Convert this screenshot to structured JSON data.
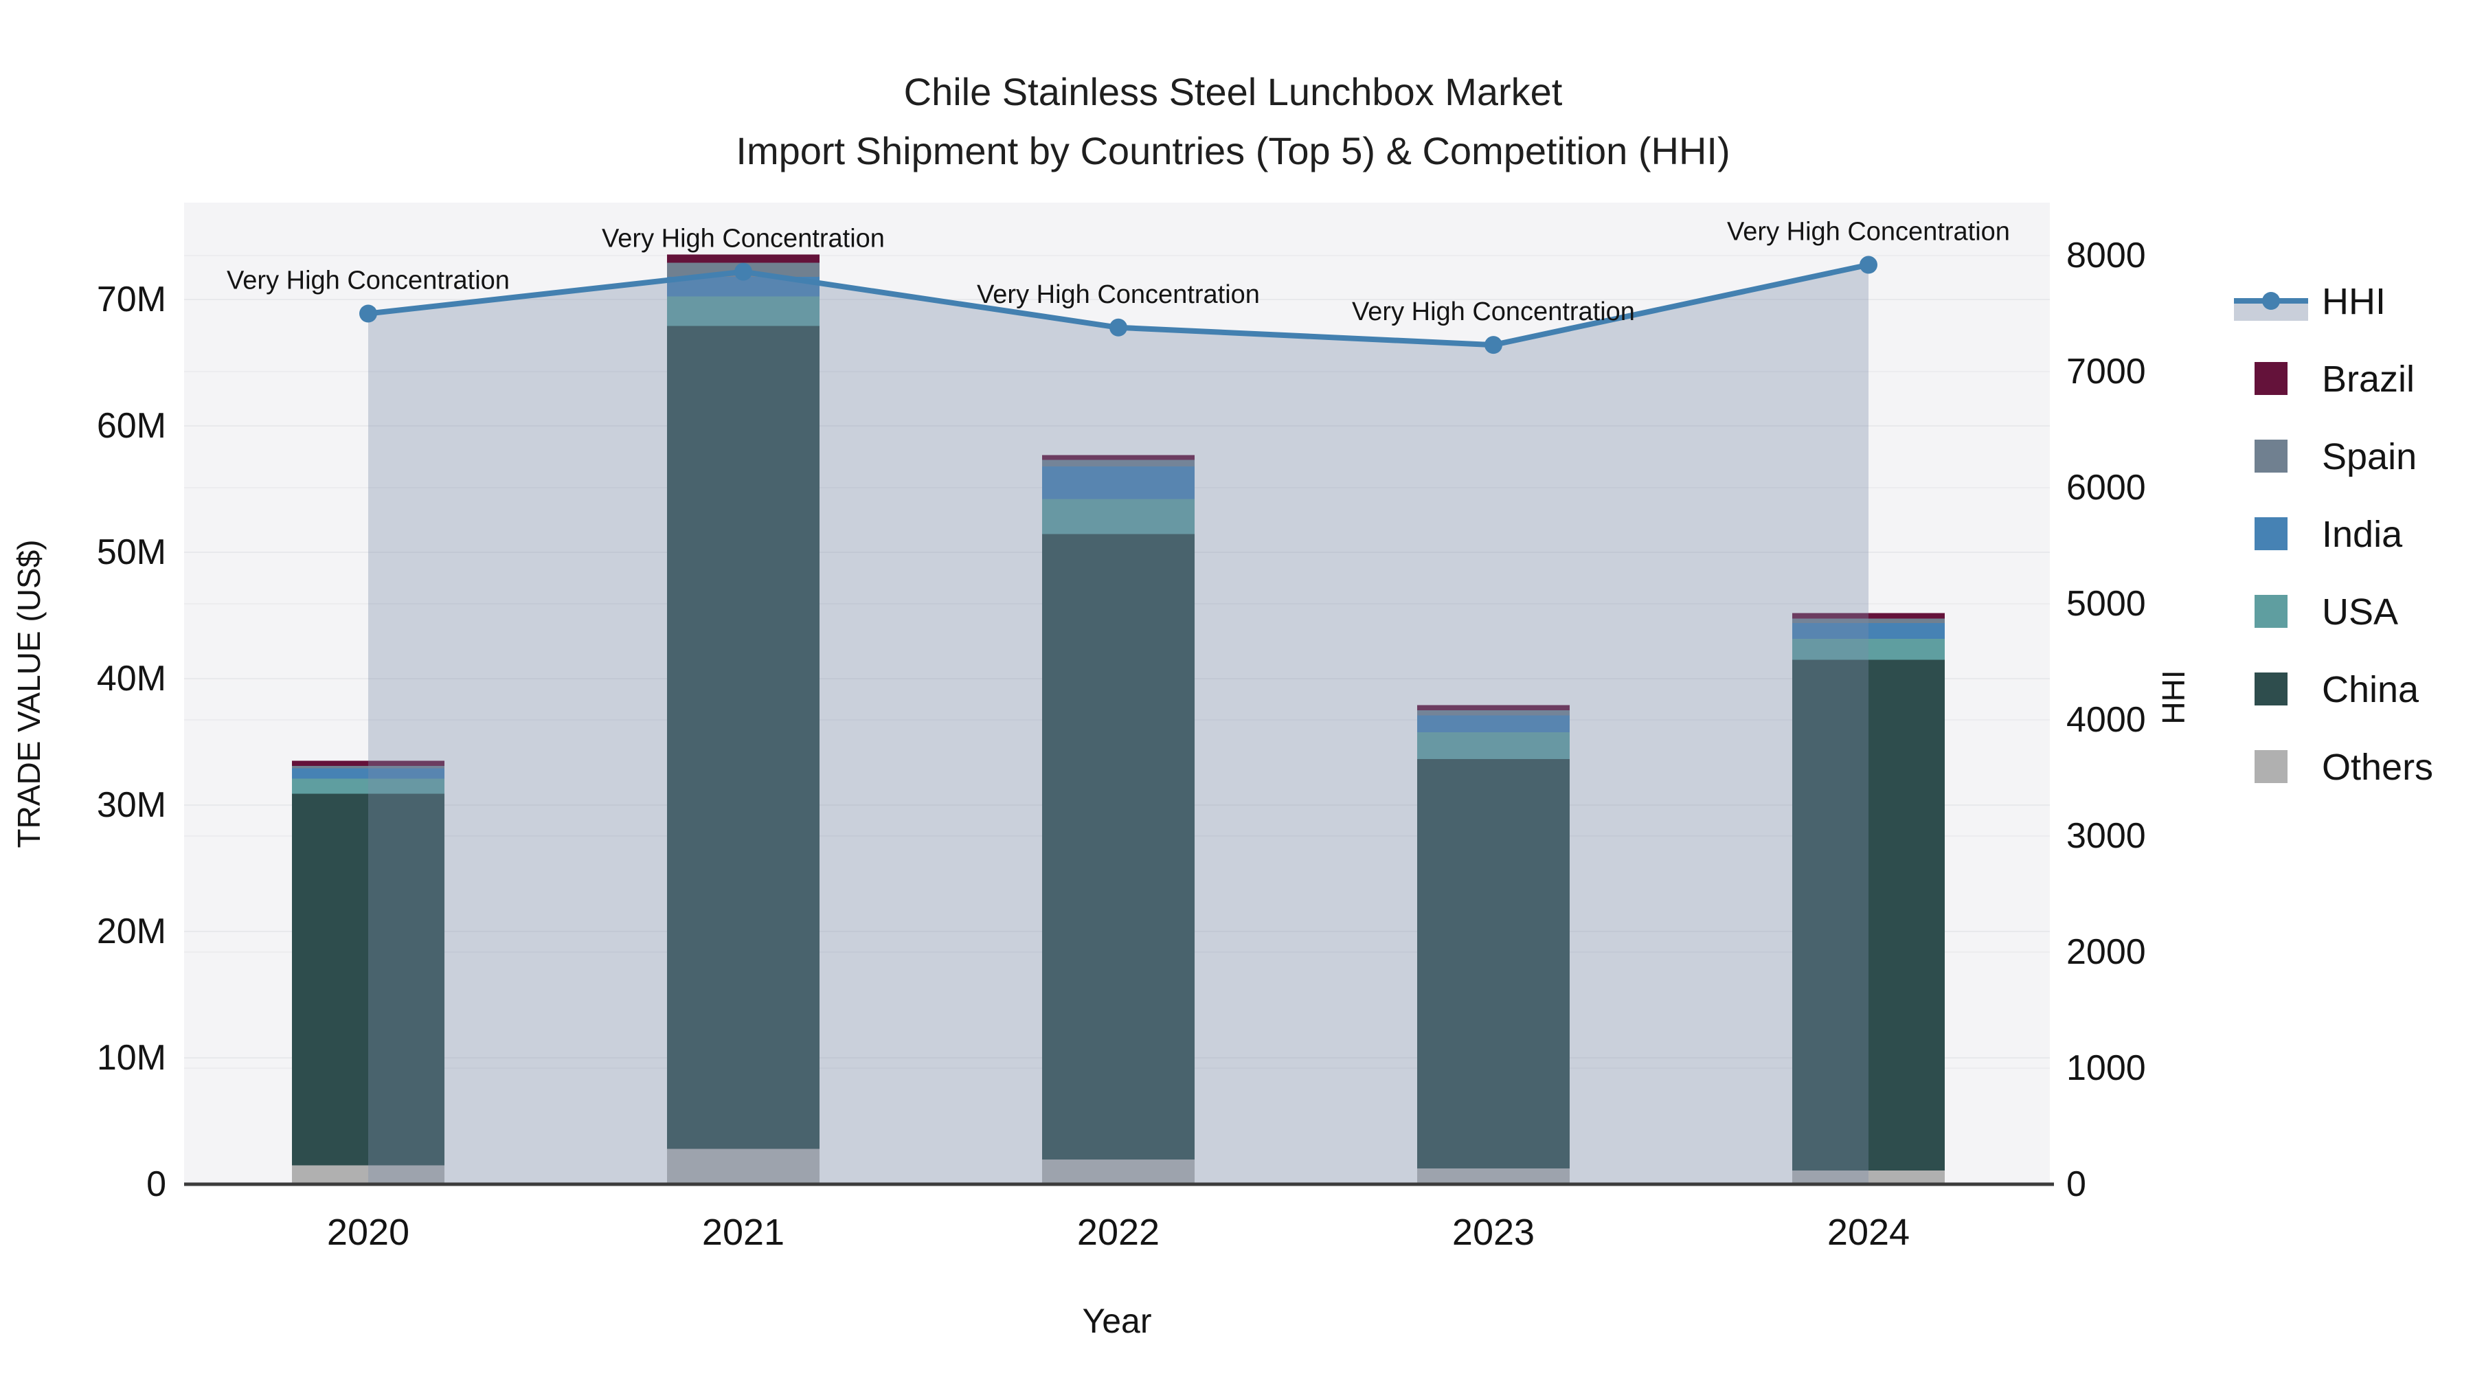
{
  "title": {
    "line1": "Chile Stainless Steel Lunchbox Market",
    "line2": "Import Shipment by Countries (Top 5) & Competition (HHI)"
  },
  "axes": {
    "x": {
      "title": "Year",
      "ticks": [
        "2020",
        "2021",
        "2022",
        "2023",
        "2024"
      ]
    },
    "y_left": {
      "title": "TRADE VALUE (US$)",
      "tick_labels": [
        "0",
        "10M",
        "20M",
        "30M",
        "40M",
        "50M",
        "60M",
        "70M"
      ],
      "tick_values": [
        0,
        10,
        20,
        30,
        40,
        50,
        60,
        70
      ]
    },
    "y_right": {
      "title": "HHI",
      "tick_labels": [
        "0",
        "1000",
        "2000",
        "3000",
        "4000",
        "5000",
        "6000",
        "7000",
        "8000"
      ],
      "tick_values": [
        0,
        1000,
        2000,
        3000,
        4000,
        5000,
        6000,
        7000,
        8000
      ]
    }
  },
  "legend": {
    "entries": [
      {
        "label": "HHI",
        "type": "line",
        "color": "#4380b0"
      },
      {
        "label": "Brazil",
        "type": "swatch",
        "color": "#64123a"
      },
      {
        "label": "Spain",
        "type": "swatch",
        "color": "#708090"
      },
      {
        "label": "India",
        "type": "swatch",
        "color": "#4682b4"
      },
      {
        "label": "USA",
        "type": "swatch",
        "color": "#5f9ea0"
      },
      {
        "label": "China",
        "type": "swatch",
        "color": "#2e4d4d"
      },
      {
        "label": "Others",
        "type": "swatch",
        "color": "#b0b0b0"
      }
    ]
  },
  "annotation_text": "Very High Concentration",
  "chart_data": {
    "type": "bar+line",
    "title": "Chile Stainless Steel Lunchbox Market — Import Shipment by Countries (Top 5) & Competition (HHI)",
    "categories": [
      "2020",
      "2021",
      "2022",
      "2023",
      "2024"
    ],
    "values_unit": "millions of US$ (read from axis; no data labels shown)",
    "stack_order_bottom_to_top": [
      "Others",
      "China",
      "USA",
      "India",
      "Spain",
      "Brazil"
    ],
    "series": [
      {
        "name": "Others",
        "color": "#b0b0b0",
        "values": [
          1.5,
          2.8,
          1.95,
          1.25,
          1.1
        ]
      },
      {
        "name": "China",
        "color": "#2e4d4d",
        "values": [
          29.4,
          65.1,
          49.5,
          32.4,
          40.4
        ]
      },
      {
        "name": "USA",
        "color": "#5f9ea0",
        "values": [
          1.2,
          2.35,
          2.75,
          2.1,
          1.65
        ]
      },
      {
        "name": "India",
        "color": "#4682b4",
        "values": [
          0.8,
          1.55,
          2.6,
          1.35,
          1.25
        ]
      },
      {
        "name": "Spain",
        "color": "#708090",
        "values": [
          0.2,
          1.1,
          0.5,
          0.4,
          0.35
        ]
      },
      {
        "name": "Brazil",
        "color": "#64123a",
        "values": [
          0.4,
          0.65,
          0.4,
          0.4,
          0.45
        ]
      }
    ],
    "bar_totals": [
      33.5,
      73.55,
      57.7,
      37.9,
      45.2
    ],
    "line_series": {
      "name": "HHI",
      "axis": "right",
      "color": "#4380b0",
      "area_fill": "rgba(123,140,170,0.35)",
      "values": [
        7500,
        7860,
        7380,
        7230,
        7920
      ],
      "annotations": [
        "Very High Concentration",
        "Very High Concentration",
        "Very High Concentration",
        "Very High Concentration",
        "Very High Concentration"
      ]
    },
    "xlabel": "Year",
    "ylabel_left": "TRADE VALUE (US$)",
    "ylabel_right": "HHI",
    "ylim_left_millions": [
      0,
      77.7
    ],
    "ylim_right": [
      0,
      8460
    ],
    "grid": true,
    "legend_position": "right-outside",
    "plot_bg": "#f4f4f6",
    "grid_color": "#e8e9ec",
    "axis_line_color": "#3c3c3c"
  }
}
